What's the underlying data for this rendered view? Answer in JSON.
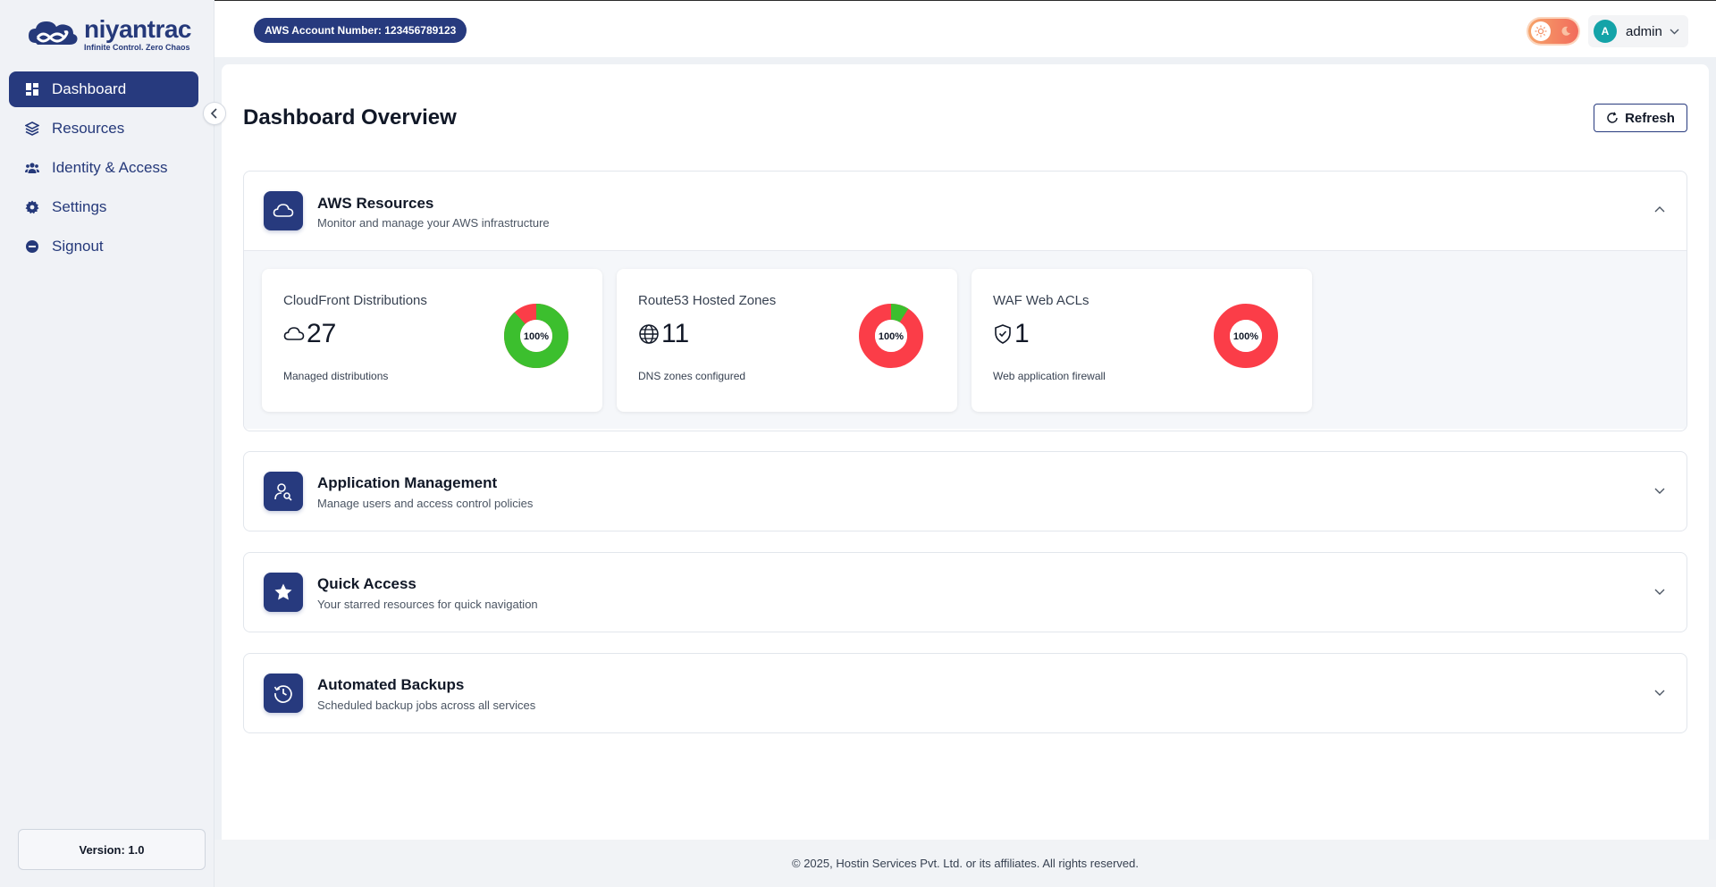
{
  "brand": {
    "name": "niyantrac",
    "tagline": "Infinite Control. Zero Chaos"
  },
  "sidebar": {
    "items": [
      {
        "label": "Dashboard",
        "icon": "grid-icon",
        "active": true
      },
      {
        "label": "Resources",
        "icon": "layers-icon"
      },
      {
        "label": "Identity & Access",
        "icon": "users-icon"
      },
      {
        "label": "Settings",
        "icon": "gear-icon"
      },
      {
        "label": "Signout",
        "icon": "signout-icon"
      }
    ],
    "version": "Version: 1.0"
  },
  "header": {
    "account": "AWS Account Number: 123456789123",
    "user": {
      "initial": "A",
      "name": "admin"
    }
  },
  "main": {
    "title": "Dashboard Overview",
    "refresh_label": "Refresh",
    "sections": [
      {
        "title": "AWS Resources",
        "subtitle": "Monitor and manage your AWS infrastructure",
        "icon": "cloud-icon",
        "expanded": true,
        "cards": [
          {
            "title": "CloudFront Distributions",
            "value": "27",
            "desc": "Managed distributions",
            "icon": "cloud-icon",
            "donut_label": "100%",
            "green_fraction": 0.88,
            "colors": {
              "good": "#3cbf2e",
              "bad": "#fb3d48"
            }
          },
          {
            "title": "Route53 Hosted Zones",
            "value": "11",
            "desc": "DNS zones configured",
            "icon": "globe-icon",
            "donut_label": "100%",
            "green_fraction": 0.09,
            "colors": {
              "good": "#3cbf2e",
              "bad": "#fb3d48"
            }
          },
          {
            "title": "WAF Web ACLs",
            "value": "1",
            "desc": "Web application firewall",
            "icon": "shield-icon",
            "donut_label": "100%",
            "green_fraction": 0.0,
            "colors": {
              "good": "#3cbf2e",
              "bad": "#fb3d48"
            }
          }
        ]
      },
      {
        "title": "Application Management",
        "subtitle": "Manage users and access control policies",
        "icon": "user-search-icon",
        "expanded": false
      },
      {
        "title": "Quick Access",
        "subtitle": "Your starred resources for quick navigation",
        "icon": "star-icon",
        "expanded": false
      },
      {
        "title": "Automated Backups",
        "subtitle": "Scheduled backup jobs across all services",
        "icon": "clock-history-icon",
        "expanded": false
      }
    ]
  },
  "footer": {
    "text": "© 2025, Hostin Services Pvt. Ltd. or its affiliates. All rights reserved."
  },
  "colors": {
    "primary": "#273a7e",
    "accent_teal": "#14a3a8",
    "success": "#3cbf2e",
    "danger": "#fb3d48"
  }
}
